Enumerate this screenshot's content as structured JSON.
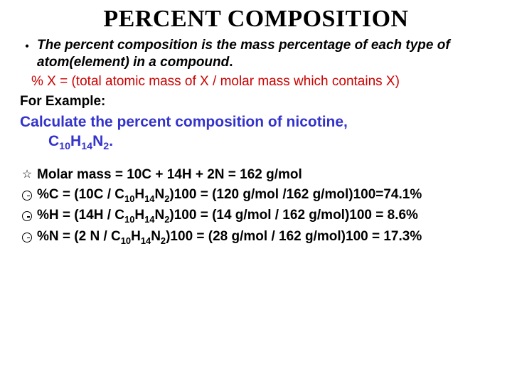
{
  "title": "PERCENT COMPOSITION",
  "definition": "The percent composition is the mass percentage of each type of atom(element) in a compound",
  "definition_trailing": ".",
  "formula": "% X = (total atomic mass of X / molar mass which contains X)",
  "example_label": "For Example:",
  "example_problem_line1": "Calculate the percent composition of nicotine,",
  "molar_mass": "Molar mass = 10C + 14H + 2N = 162 g/mol",
  "calc_c_pre": "%C = (10C / C",
  "calc_c_post": ")100 = (120 g/mol /162 g/mol)100=74.1%",
  "calc_h_pre": "%H = (14H / C",
  "calc_h_post": ")100 = (14 g/mol / 162 g/mol)100 = 8.6%",
  "calc_n_pre": "%N = (2 N / C",
  "calc_n_post": ")100 = (28 g/mol / 162 g/mol)100 = 17.3%",
  "colors": {
    "title": "#000000",
    "formula": "#cc0000",
    "problem": "#3333cc",
    "body": "#000000",
    "background": "#ffffff"
  },
  "font_sizes": {
    "title": 34,
    "body": 19,
    "problem": 21
  }
}
